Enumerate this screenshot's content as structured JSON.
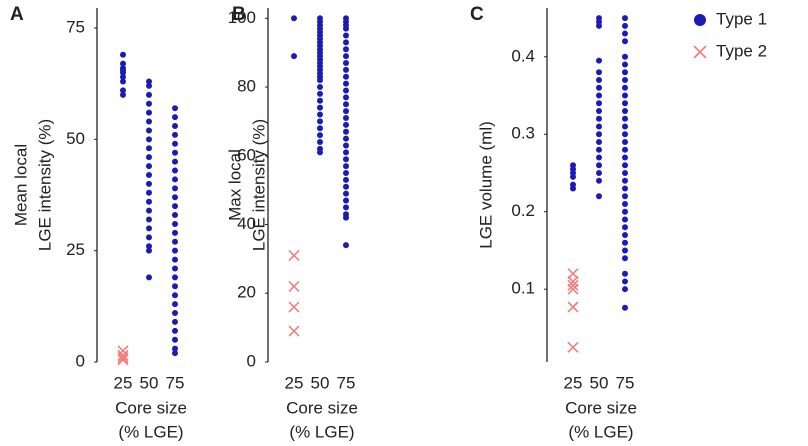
{
  "chart_data": [
    {
      "type": "scatter",
      "panel": "A",
      "ylabel": [
        "Mean local",
        "LGE intensity (%)"
      ],
      "xlabel": [
        "Core size",
        "(% LGE)"
      ],
      "xlim": [
        0,
        100
      ],
      "xticks": [
        25,
        50,
        75
      ],
      "ylim": [
        0,
        79.5
      ],
      "yticks": [
        0,
        25,
        50,
        75
      ],
      "series": [
        {
          "name": "Type 1",
          "color": "#1c1cb4",
          "marker": "dot",
          "x": [
            25,
            25,
            25,
            25,
            25,
            25,
            25,
            25,
            25,
            50,
            50,
            50,
            50,
            50,
            50,
            50,
            50,
            50,
            50,
            50,
            50,
            50,
            50,
            50,
            50,
            50,
            50,
            50,
            50,
            50,
            50,
            75,
            75,
            75,
            75,
            75,
            75,
            75,
            75,
            75,
            75,
            75,
            75,
            75,
            75,
            75,
            75,
            75,
            75,
            75,
            75,
            75,
            75,
            75,
            75,
            75,
            75,
            75,
            75,
            75
          ],
          "y": [
            69,
            67,
            66,
            65.5,
            65,
            64,
            63,
            61,
            60,
            63,
            62,
            60,
            58,
            56,
            54,
            52,
            50,
            48,
            46,
            44,
            42,
            40,
            38,
            36,
            34,
            32,
            30,
            28,
            26,
            25,
            19,
            57,
            55,
            53,
            51,
            49,
            47,
            45,
            43,
            41,
            39,
            37,
            35,
            33,
            31,
            29,
            27,
            25,
            23,
            21,
            19,
            17,
            15,
            13,
            11,
            9,
            7,
            5,
            3,
            2
          ]
        },
        {
          "name": "Type 2",
          "color": "#f08080",
          "marker": "cross",
          "x": [
            25,
            25,
            25,
            25
          ],
          "y": [
            2.5,
            1.5,
            1,
            0.5
          ]
        }
      ]
    },
    {
      "type": "scatter",
      "panel": "B",
      "ylabel": [
        "Max local",
        "LGE intensity (%)"
      ],
      "xlabel": [
        "Core size",
        "(% LGE)"
      ],
      "xlim": [
        0,
        100
      ],
      "xticks": [
        25,
        50,
        75
      ],
      "ylim": [
        0,
        103
      ],
      "yticks": [
        0,
        20,
        40,
        60,
        80,
        100
      ],
      "series": [
        {
          "name": "Type 1",
          "color": "#1c1cb4",
          "marker": "dot",
          "x": [
            25,
            25,
            50,
            50,
            50,
            50,
            50,
            50,
            50,
            50,
            50,
            50,
            50,
            50,
            50,
            50,
            50,
            50,
            50,
            50,
            50,
            50,
            50,
            50,
            50,
            50,
            50,
            50,
            50,
            50,
            50,
            50,
            75,
            75,
            75,
            75,
            75,
            75,
            75,
            75,
            75,
            75,
            75,
            75,
            75,
            75,
            75,
            75,
            75,
            75,
            75,
            75,
            75,
            75,
            75,
            75,
            75,
            75,
            75,
            75,
            75,
            75,
            75,
            75,
            75
          ],
          "y": [
            100,
            89,
            100,
            99,
            98,
            97,
            96,
            95,
            94,
            93,
            92,
            91,
            90,
            89,
            88,
            87,
            86,
            85,
            84,
            83,
            82,
            80,
            78,
            76,
            74,
            72,
            70,
            68,
            66,
            64,
            62,
            61,
            100,
            99,
            98,
            97,
            95,
            93,
            91,
            89,
            87,
            85,
            83,
            81,
            79,
            77,
            75,
            73,
            71,
            69,
            67,
            65,
            63,
            61,
            59,
            57,
            55,
            53,
            51,
            49,
            47,
            45,
            43,
            42,
            34
          ]
        },
        {
          "name": "Type 2",
          "color": "#f08080",
          "marker": "cross",
          "x": [
            25,
            25,
            25,
            25
          ],
          "y": [
            31,
            22,
            16,
            9
          ]
        }
      ]
    },
    {
      "type": "scatter",
      "panel": "C",
      "ylabel": [
        "LGE volume (ml)"
      ],
      "xlabel": [
        "Core size",
        "(% LGE)"
      ],
      "xlim": [
        0,
        100
      ],
      "xticks": [
        25,
        50,
        75
      ],
      "ylim": [
        0.006,
        0.463
      ],
      "yticks": [
        0.1,
        0.2,
        0.3,
        0.4
      ],
      "series": [
        {
          "name": "Type 1",
          "color": "#1c1cb4",
          "marker": "dot",
          "x": [
            25,
            25,
            25,
            25,
            25,
            25,
            50,
            50,
            50,
            50,
            50,
            50,
            50,
            50,
            50,
            50,
            50,
            50,
            50,
            50,
            50,
            50,
            50,
            50,
            50,
            50,
            75,
            75,
            75,
            75,
            75,
            75,
            75,
            75,
            75,
            75,
            75,
            75,
            75,
            75,
            75,
            75,
            75,
            75,
            75,
            75,
            75,
            75,
            75,
            75,
            75,
            75,
            75,
            75,
            75,
            75,
            75,
            75,
            75,
            75,
            75
          ],
          "y": [
            0.26,
            0.255,
            0.25,
            0.245,
            0.235,
            0.23,
            0.45,
            0.445,
            0.44,
            0.395,
            0.38,
            0.37,
            0.36,
            0.35,
            0.34,
            0.33,
            0.32,
            0.31,
            0.3,
            0.29,
            0.28,
            0.27,
            0.26,
            0.25,
            0.24,
            0.22,
            0.45,
            0.44,
            0.43,
            0.42,
            0.4,
            0.39,
            0.38,
            0.37,
            0.36,
            0.35,
            0.34,
            0.33,
            0.32,
            0.31,
            0.3,
            0.29,
            0.28,
            0.27,
            0.26,
            0.25,
            0.24,
            0.23,
            0.22,
            0.21,
            0.2,
            0.19,
            0.18,
            0.17,
            0.16,
            0.15,
            0.14,
            0.12,
            0.11,
            0.1,
            0.076
          ]
        },
        {
          "name": "Type 2",
          "color": "#f08080",
          "marker": "cross",
          "x": [
            25,
            25,
            25,
            25,
            25,
            25
          ],
          "y": [
            0.12,
            0.11,
            0.105,
            0.1,
            0.077,
            0.025
          ]
        }
      ]
    }
  ]
}
